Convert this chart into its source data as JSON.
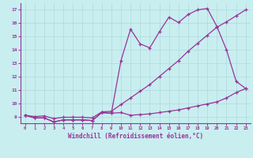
{
  "xlabel": "Windchill (Refroidissement éolien,°C)",
  "bg_color": "#c8eef0",
  "grid_color": "#b0d8dc",
  "line_color": "#993399",
  "xlim_min": -0.5,
  "xlim_max": 23.5,
  "ylim_min": 8.5,
  "ylim_max": 17.5,
  "xticks": [
    0,
    1,
    2,
    3,
    4,
    5,
    6,
    7,
    8,
    9,
    10,
    11,
    12,
    13,
    14,
    15,
    16,
    17,
    18,
    19,
    20,
    21,
    22,
    23
  ],
  "yticks": [
    9,
    10,
    11,
    12,
    13,
    14,
    15,
    16,
    17
  ],
  "line_bottom_y": [
    9.1,
    8.9,
    8.9,
    8.6,
    8.75,
    8.75,
    8.75,
    8.7,
    9.3,
    9.25,
    9.3,
    9.1,
    9.15,
    9.2,
    9.3,
    9.4,
    9.5,
    9.65,
    9.8,
    9.95,
    10.1,
    10.4,
    10.8,
    11.1
  ],
  "line_mid_y": [
    9.1,
    9.0,
    9.05,
    8.85,
    8.95,
    8.95,
    8.95,
    8.9,
    9.35,
    9.4,
    9.9,
    10.4,
    10.9,
    11.4,
    12.0,
    12.6,
    13.2,
    13.9,
    14.5,
    15.1,
    15.7,
    16.1,
    16.55,
    17.0
  ],
  "line_top_y": [
    9.1,
    8.9,
    8.9,
    8.6,
    8.75,
    8.75,
    8.75,
    8.7,
    9.3,
    9.25,
    13.2,
    15.55,
    14.45,
    14.15,
    15.35,
    16.45,
    16.05,
    16.65,
    17.0,
    17.1,
    15.75,
    14.0,
    11.65,
    11.1
  ]
}
